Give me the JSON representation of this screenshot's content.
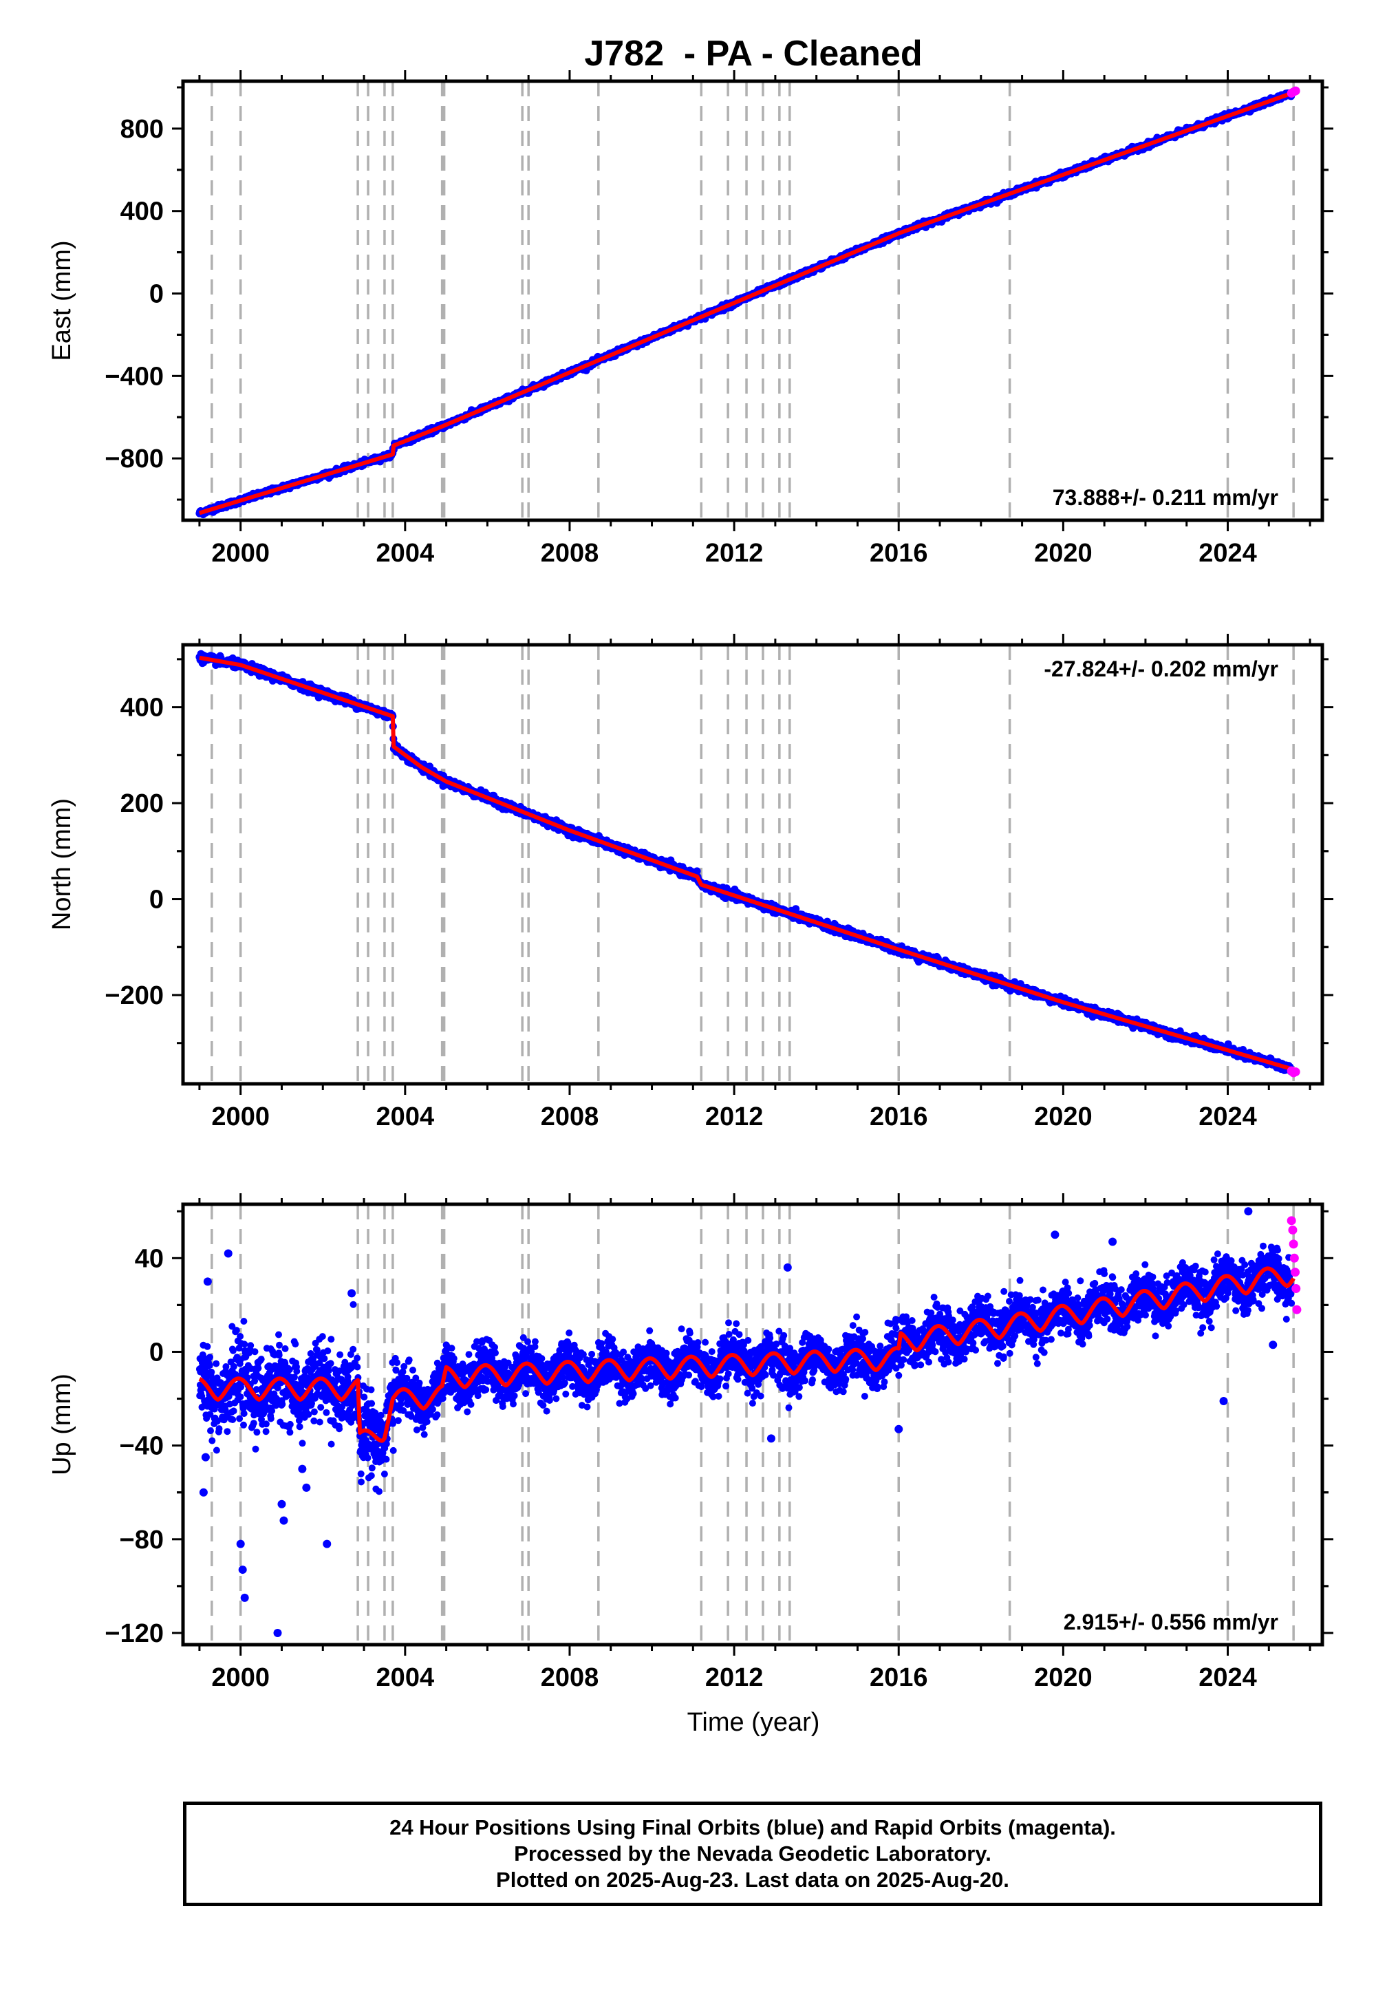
{
  "title": "J782  - PA - Cleaned",
  "xlabel": "Time (year)",
  "colors": {
    "final_orbits": "#0000ff",
    "rapid_orbits": "#ff00ff",
    "model": "#ff0000",
    "event_lines": "#b0b0b0"
  },
  "footer": {
    "line1": "24 Hour Positions Using Final Orbits (blue) and Rapid Orbits (magenta).",
    "line2": "Processed by the Nevada Geodetic Laboratory.",
    "line3": "Plotted on 2025-Aug-23. Last data on 2025-Aug-20."
  },
  "chart_data": [
    {
      "type": "scatter",
      "ylabel": "East (mm)",
      "xlim": [
        1998.6,
        2026.3
      ],
      "ylim": [
        -1100,
        1030
      ],
      "xticks": [
        2000,
        2004,
        2008,
        2012,
        2016,
        2020,
        2024
      ],
      "yticks": [
        -800,
        -400,
        0,
        400,
        800
      ],
      "rate_label": "73.888+/- 0.211 mm/yr",
      "rate_position": "bottom-right",
      "event_lines": [
        1999.3,
        2000.0,
        2002.85,
        2003.1,
        2003.5,
        2003.7,
        2004.9,
        2004.95,
        2006.85,
        2007.0,
        2008.7,
        2011.2,
        2011.85,
        2012.3,
        2012.7,
        2013.1,
        2013.35,
        2016.0,
        2018.7,
        2024.0,
        2025.6
      ],
      "model": [
        [
          1999.0,
          -1065
        ],
        [
          2003.7,
          -780
        ],
        [
          2003.72,
          -738
        ],
        [
          2004.9,
          -645
        ],
        [
          2016.0,
          292
        ],
        [
          2025.6,
          975
        ]
      ],
      "rapid_points": [
        [
          2025.55,
          972
        ],
        [
          2025.6,
          978
        ],
        [
          2025.65,
          983
        ]
      ],
      "noise_mm": 6
    },
    {
      "type": "scatter",
      "ylabel": "North (mm)",
      "xlim": [
        1998.6,
        2026.3
      ],
      "ylim": [
        -385,
        530
      ],
      "xticks": [
        2000,
        2004,
        2008,
        2012,
        2016,
        2020,
        2024
      ],
      "yticks": [
        -200,
        0,
        200,
        400
      ],
      "rate_label": "-27.824+/- 0.202 mm/yr",
      "rate_position": "top-right",
      "event_lines": [
        1999.3,
        2000.0,
        2002.85,
        2003.1,
        2003.5,
        2003.7,
        2004.9,
        2004.95,
        2006.85,
        2007.0,
        2008.7,
        2011.2,
        2011.85,
        2012.3,
        2012.7,
        2013.1,
        2013.35,
        2016.0,
        2018.7,
        2024.0,
        2025.6
      ],
      "model": [
        [
          1999.0,
          503
        ],
        [
          2000.0,
          488
        ],
        [
          2003.7,
          381
        ],
        [
          2003.72,
          318
        ],
        [
          2004.4,
          275
        ],
        [
          2005.0,
          245
        ],
        [
          2008.0,
          143
        ],
        [
          2011.1,
          47
        ],
        [
          2011.2,
          30
        ],
        [
          2016.0,
          -105
        ],
        [
          2020.0,
          -215
        ],
        [
          2025.6,
          -355
        ]
      ],
      "rapid_points": [
        [
          2025.55,
          -358
        ],
        [
          2025.6,
          -362
        ],
        [
          2025.65,
          -360
        ]
      ],
      "noise_mm": 4
    },
    {
      "type": "scatter",
      "ylabel": "Up (mm)",
      "xlim": [
        1998.6,
        2026.3
      ],
      "ylim": [
        -125,
        63
      ],
      "xticks": [
        2000,
        2004,
        2008,
        2012,
        2016,
        2020,
        2024
      ],
      "yticks": [
        -120,
        -80,
        -40,
        0,
        40
      ],
      "rate_label": "2.915+/- 0.556 mm/yr",
      "rate_position": "bottom-right",
      "event_lines": [
        1999.3,
        2000.0,
        2002.85,
        2003.1,
        2003.5,
        2003.7,
        2004.9,
        2004.95,
        2006.85,
        2007.0,
        2008.7,
        2011.2,
        2011.85,
        2012.3,
        2012.7,
        2013.1,
        2013.35,
        2016.0,
        2018.7,
        2024.0,
        2025.6
      ],
      "model_trend": [
        [
          1999.0,
          -15
        ],
        [
          2002.85,
          -15
        ],
        [
          2002.9,
          -38
        ],
        [
          2003.5,
          -32
        ],
        [
          2003.7,
          -20
        ],
        [
          2004.9,
          -18
        ],
        [
          2005.0,
          -10
        ],
        [
          2016.0,
          -2
        ],
        [
          2016.05,
          5
        ],
        [
          2018.7,
          12
        ],
        [
          2025.6,
          34
        ]
      ],
      "annual_amplitude_mm": 9,
      "outliers": [
        [
          1999.1,
          -60
        ],
        [
          1999.15,
          -45
        ],
        [
          1999.2,
          30
        ],
        [
          1999.7,
          42
        ],
        [
          2000.0,
          -82
        ],
        [
          2000.05,
          -93
        ],
        [
          2000.1,
          -105
        ],
        [
          2000.9,
          -120
        ],
        [
          2001.0,
          -65
        ],
        [
          2001.05,
          -72
        ],
        [
          2001.5,
          -50
        ],
        [
          2001.6,
          -58
        ],
        [
          2002.1,
          -82
        ],
        [
          2002.7,
          25
        ],
        [
          2012.9,
          -37
        ],
        [
          2013.3,
          36
        ],
        [
          2016.0,
          -33
        ],
        [
          2019.8,
          50
        ],
        [
          2021.2,
          47
        ],
        [
          2023.9,
          -21
        ],
        [
          2024.5,
          60
        ],
        [
          2025.1,
          3
        ]
      ],
      "rapid_points": [
        [
          2025.55,
          56
        ],
        [
          2025.58,
          52
        ],
        [
          2025.6,
          46
        ],
        [
          2025.62,
          40
        ],
        [
          2025.64,
          34
        ],
        [
          2025.66,
          27
        ],
        [
          2025.68,
          18
        ]
      ],
      "noise_mm": 5
    }
  ]
}
